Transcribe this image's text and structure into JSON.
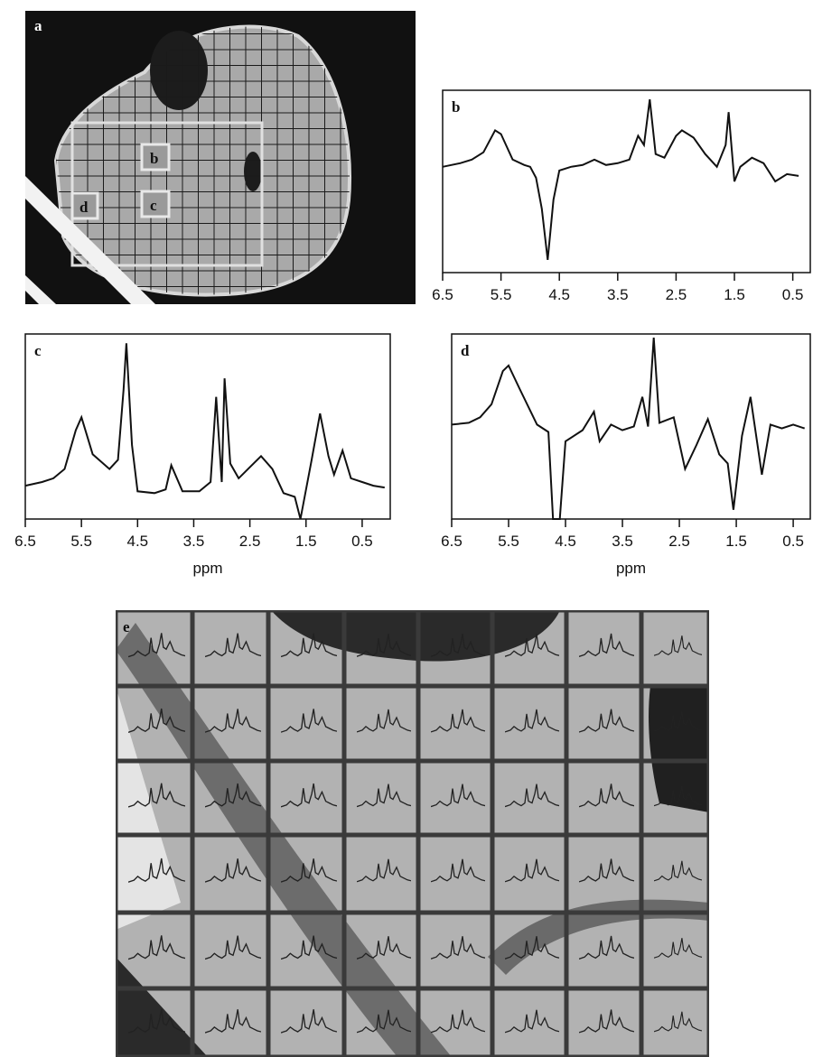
{
  "panel_a": {
    "label": "a",
    "voxel_labels": [
      "b",
      "c",
      "d"
    ]
  },
  "panel_e": {
    "label": "e"
  },
  "chart_data": [
    {
      "type": "line",
      "title": "b",
      "xlim": [
        6.5,
        0.2
      ],
      "xticks": [
        6.5,
        5.5,
        4.5,
        3.5,
        2.5,
        1.5,
        0.5
      ],
      "ylim": [
        0,
        100
      ],
      "color": "#111111",
      "x": [
        6.5,
        6.2,
        6.0,
        5.8,
        5.6,
        5.5,
        5.3,
        5.1,
        5.0,
        4.9,
        4.8,
        4.7,
        4.6,
        4.5,
        4.3,
        4.1,
        3.9,
        3.7,
        3.5,
        3.3,
        3.15,
        3.05,
        2.95,
        2.85,
        2.7,
        2.5,
        2.4,
        2.2,
        2.0,
        1.8,
        1.65,
        1.6,
        1.5,
        1.4,
        1.2,
        1.0,
        0.8,
        0.6,
        0.4
      ],
      "values": [
        58,
        60,
        62,
        66,
        78,
        76,
        62,
        59,
        58,
        52,
        35,
        7,
        40,
        56,
        58,
        59,
        62,
        59,
        60,
        62,
        75,
        70,
        95,
        65,
        63,
        75,
        78,
        74,
        65,
        58,
        70,
        88,
        50,
        58,
        63,
        60,
        50,
        54,
        53
      ]
    },
    {
      "type": "line",
      "title": "c",
      "xlabel": "ppm",
      "xlim": [
        6.5,
        0
      ],
      "xticks": [
        6.5,
        5.5,
        4.5,
        3.5,
        2.5,
        1.5,
        0.5
      ],
      "ylim": [
        0,
        100
      ],
      "color": "#111111",
      "x": [
        6.5,
        6.2,
        6.0,
        5.8,
        5.6,
        5.5,
        5.3,
        5.0,
        4.85,
        4.75,
        4.7,
        4.6,
        4.5,
        4.2,
        4.0,
        3.9,
        3.7,
        3.4,
        3.2,
        3.1,
        3.0,
        2.95,
        2.85,
        2.7,
        2.5,
        2.3,
        2.1,
        1.9,
        1.7,
        1.6,
        1.4,
        1.25,
        1.1,
        1.0,
        0.85,
        0.7,
        0.5,
        0.3,
        0.1
      ],
      "values": [
        18,
        20,
        22,
        27,
        48,
        55,
        35,
        27,
        32,
        70,
        95,
        40,
        15,
        14,
        16,
        29,
        15,
        15,
        20,
        66,
        20,
        76,
        30,
        22,
        28,
        34,
        27,
        14,
        12,
        0,
        32,
        57,
        34,
        24,
        37,
        22,
        20,
        18,
        17
      ]
    },
    {
      "type": "line",
      "title": "d",
      "xlabel": "ppm",
      "xlim": [
        6.5,
        0.2
      ],
      "xticks": [
        6.5,
        5.5,
        4.5,
        3.5,
        2.5,
        1.5,
        0.5
      ],
      "ylim": [
        0,
        100
      ],
      "color": "#111111",
      "x": [
        6.5,
        6.2,
        6.0,
        5.8,
        5.6,
        5.5,
        5.3,
        5.0,
        4.8,
        4.72,
        4.6,
        4.5,
        4.2,
        4.0,
        3.9,
        3.7,
        3.5,
        3.3,
        3.15,
        3.05,
        2.95,
        2.85,
        2.6,
        2.4,
        2.2,
        2.0,
        1.8,
        1.65,
        1.55,
        1.4,
        1.25,
        1.05,
        0.9,
        0.7,
        0.5,
        0.3
      ],
      "values": [
        51,
        52,
        55,
        62,
        80,
        83,
        70,
        51,
        47,
        0,
        0,
        42,
        48,
        58,
        42,
        51,
        48,
        50,
        66,
        50,
        98,
        52,
        55,
        27,
        40,
        54,
        35,
        30,
        5,
        45,
        66,
        24,
        51,
        49,
        51,
        49
      ]
    }
  ]
}
